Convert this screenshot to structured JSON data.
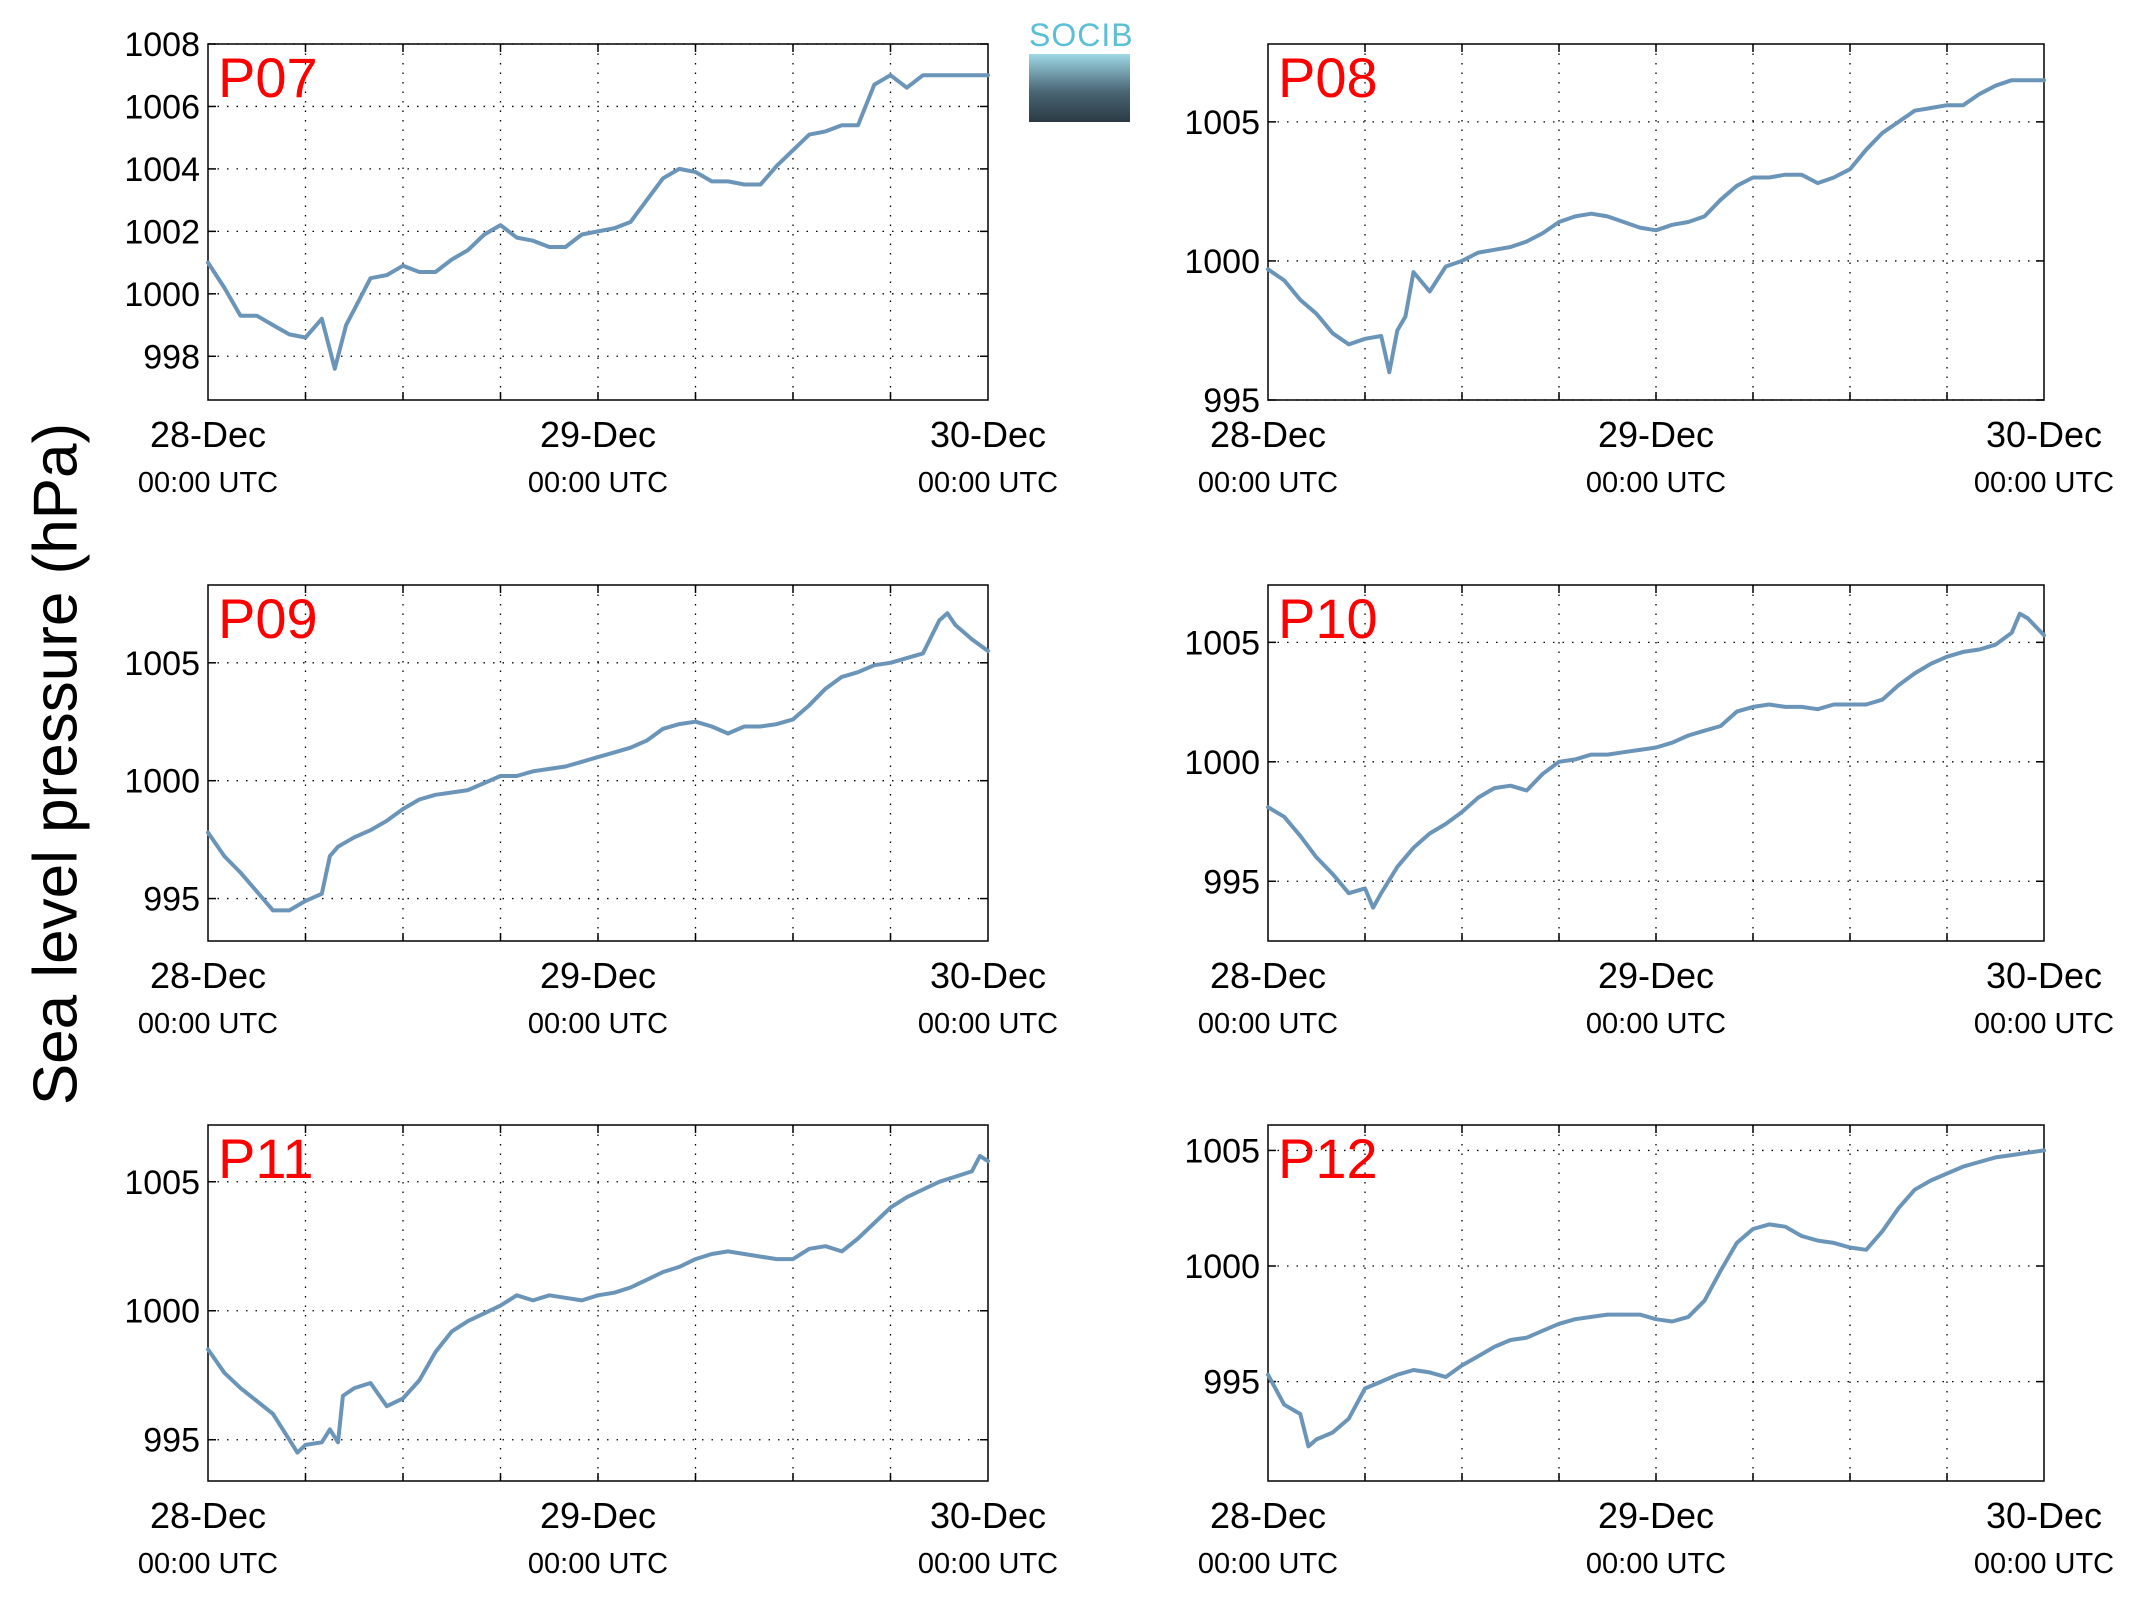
{
  "figure": {
    "ylabel": "Sea level pressure (hPa)",
    "logo_text": "SOCIB"
  },
  "colors": {
    "line": "#6b95b8",
    "panel_label": "#ff0000",
    "axis": "#000000"
  },
  "chart_data": [
    {
      "type": "line",
      "title": "P07",
      "x_tick_labels": [
        [
          "28-Dec",
          "00:00 UTC"
        ],
        [
          "29-Dec",
          "00:00 UTC"
        ],
        [
          "30-Dec",
          "00:00 UTC"
        ]
      ],
      "x_ticks_hours": [
        0,
        24,
        48
      ],
      "x_grid_hours": [
        6,
        12,
        18,
        24,
        30,
        36,
        42
      ],
      "xlim_hours": [
        0,
        48
      ],
      "ylim": [
        996.6,
        1008
      ],
      "yticks": [
        998,
        1000,
        1002,
        1004,
        1006,
        1008
      ],
      "grid": true,
      "series": [
        {
          "x_hours": [
            0,
            1,
            2,
            3,
            4,
            5,
            6,
            7,
            7.8,
            8.5,
            9,
            10,
            11,
            12,
            13,
            14,
            15,
            16,
            17,
            18,
            19,
            20,
            21,
            22,
            23,
            24,
            25,
            26,
            27,
            28,
            29,
            30,
            31,
            32,
            33,
            34,
            35,
            36,
            37,
            38,
            39,
            40,
            41,
            42,
            43,
            44,
            45,
            46,
            47,
            48
          ],
          "values": [
            1001.0,
            1000.2,
            999.3,
            999.3,
            999.0,
            998.7,
            998.6,
            999.2,
            997.6,
            999.0,
            999.5,
            1000.5,
            1000.6,
            1000.9,
            1000.7,
            1000.7,
            1001.1,
            1001.4,
            1001.9,
            1002.2,
            1001.8,
            1001.7,
            1001.5,
            1001.5,
            1001.9,
            1002.0,
            1002.1,
            1002.3,
            1003.0,
            1003.7,
            1004.0,
            1003.9,
            1003.6,
            1003.6,
            1003.5,
            1003.5,
            1004.1,
            1004.6,
            1005.1,
            1005.2,
            1005.4,
            1005.4,
            1006.7,
            1007.0,
            1006.6,
            1007.0,
            1007.0,
            1007.0,
            1007.0,
            1007.0
          ]
        }
      ]
    },
    {
      "type": "line",
      "title": "P08",
      "x_tick_labels": [
        [
          "28-Dec",
          "00:00 UTC"
        ],
        [
          "29-Dec",
          "00:00 UTC"
        ],
        [
          "30-Dec",
          "00:00 UTC"
        ]
      ],
      "x_ticks_hours": [
        0,
        24,
        48
      ],
      "x_grid_hours": [
        6,
        12,
        18,
        24,
        30,
        36,
        42
      ],
      "xlim_hours": [
        0,
        48
      ],
      "ylim": [
        995,
        1007.8
      ],
      "yticks": [
        995,
        1000,
        1005
      ],
      "grid": true,
      "series": [
        {
          "x_hours": [
            0,
            1,
            2,
            3,
            4,
            5,
            6,
            7,
            7.5,
            8,
            8.5,
            9,
            10,
            11,
            12,
            13,
            14,
            15,
            16,
            17,
            18,
            19,
            20,
            21,
            22,
            23,
            24,
            25,
            26,
            27,
            28,
            29,
            30,
            31,
            32,
            33,
            34,
            35,
            36,
            37,
            38,
            39,
            40,
            41,
            42,
            43,
            44,
            45,
            46,
            47,
            48
          ],
          "values": [
            999.7,
            999.3,
            998.6,
            998.1,
            997.4,
            997.0,
            997.2,
            997.3,
            996.0,
            997.5,
            998.0,
            999.6,
            998.9,
            999.8,
            1000.0,
            1000.3,
            1000.4,
            1000.5,
            1000.7,
            1001.0,
            1001.4,
            1001.6,
            1001.7,
            1001.6,
            1001.4,
            1001.2,
            1001.1,
            1001.3,
            1001.4,
            1001.6,
            1002.2,
            1002.7,
            1003.0,
            1003.0,
            1003.1,
            1003.1,
            1002.8,
            1003.0,
            1003.3,
            1004.0,
            1004.6,
            1005.0,
            1005.4,
            1005.5,
            1005.6,
            1005.6,
            1006.0,
            1006.3,
            1006.5,
            1006.5,
            1006.5
          ]
        }
      ]
    },
    {
      "type": "line",
      "title": "P09",
      "x_tick_labels": [
        [
          "28-Dec",
          "00:00 UTC"
        ],
        [
          "29-Dec",
          "00:00 UTC"
        ],
        [
          "30-Dec",
          "00:00 UTC"
        ]
      ],
      "x_ticks_hours": [
        0,
        24,
        48
      ],
      "x_grid_hours": [
        6,
        12,
        18,
        24,
        30,
        36,
        42
      ],
      "xlim_hours": [
        0,
        48
      ],
      "ylim": [
        993.2,
        1008.3
      ],
      "yticks": [
        995,
        1000,
        1005
      ],
      "grid": true,
      "series": [
        {
          "x_hours": [
            0,
            1,
            2,
            3,
            4,
            5,
            6,
            7,
            7.5,
            8,
            9,
            10,
            11,
            12,
            13,
            14,
            15,
            16,
            17,
            18,
            19,
            20,
            21,
            22,
            23,
            24,
            25,
            26,
            27,
            28,
            29,
            30,
            31,
            32,
            33,
            34,
            35,
            36,
            37,
            38,
            39,
            40,
            41,
            42,
            43,
            44,
            45,
            45.5,
            46,
            47,
            48
          ],
          "values": [
            997.8,
            996.8,
            996.1,
            995.3,
            994.5,
            994.5,
            994.9,
            995.2,
            996.8,
            997.2,
            997.6,
            997.9,
            998.3,
            998.8,
            999.2,
            999.4,
            999.5,
            999.6,
            999.9,
            1000.2,
            1000.2,
            1000.4,
            1000.5,
            1000.6,
            1000.8,
            1001.0,
            1001.2,
            1001.4,
            1001.7,
            1002.2,
            1002.4,
            1002.5,
            1002.3,
            1002.0,
            1002.3,
            1002.3,
            1002.4,
            1002.6,
            1003.2,
            1003.9,
            1004.4,
            1004.6,
            1004.9,
            1005.0,
            1005.2,
            1005.4,
            1006.8,
            1007.1,
            1006.6,
            1006.0,
            1005.5
          ]
        }
      ]
    },
    {
      "type": "line",
      "title": "P10",
      "x_tick_labels": [
        [
          "28-Dec",
          "00:00 UTC"
        ],
        [
          "29-Dec",
          "00:00 UTC"
        ],
        [
          "30-Dec",
          "00:00 UTC"
        ]
      ],
      "x_ticks_hours": [
        0,
        24,
        48
      ],
      "x_grid_hours": [
        6,
        12,
        18,
        24,
        30,
        36,
        42
      ],
      "xlim_hours": [
        0,
        48
      ],
      "ylim": [
        992.5,
        1007.4
      ],
      "yticks": [
        995,
        1000,
        1005
      ],
      "grid": true,
      "series": [
        {
          "x_hours": [
            0,
            1,
            2,
            3,
            4,
            5,
            6,
            6.5,
            7,
            8,
            9,
            10,
            11,
            12,
            13,
            14,
            15,
            16,
            17,
            18,
            19,
            20,
            21,
            22,
            23,
            24,
            25,
            26,
            27,
            28,
            29,
            30,
            31,
            32,
            33,
            34,
            35,
            36,
            37,
            38,
            39,
            40,
            41,
            42,
            43,
            44,
            45,
            46,
            46.5,
            47,
            48
          ],
          "values": [
            998.1,
            997.7,
            996.9,
            996.0,
            995.3,
            994.5,
            994.7,
            993.9,
            994.5,
            995.6,
            996.4,
            997.0,
            997.4,
            997.9,
            998.5,
            998.9,
            999.0,
            998.8,
            999.5,
            1000.0,
            1000.1,
            1000.3,
            1000.3,
            1000.4,
            1000.5,
            1000.6,
            1000.8,
            1001.1,
            1001.3,
            1001.5,
            1002.1,
            1002.3,
            1002.4,
            1002.3,
            1002.3,
            1002.2,
            1002.4,
            1002.4,
            1002.4,
            1002.6,
            1003.2,
            1003.7,
            1004.1,
            1004.4,
            1004.6,
            1004.7,
            1004.9,
            1005.4,
            1006.2,
            1006.0,
            1005.3
          ]
        }
      ]
    },
    {
      "type": "line",
      "title": "P11",
      "x_tick_labels": [
        [
          "28-Dec",
          "00:00 UTC"
        ],
        [
          "29-Dec",
          "00:00 UTC"
        ],
        [
          "30-Dec",
          "00:00 UTC"
        ]
      ],
      "x_ticks_hours": [
        0,
        24,
        48
      ],
      "x_grid_hours": [
        6,
        12,
        18,
        24,
        30,
        36,
        42
      ],
      "xlim_hours": [
        0,
        48
      ],
      "ylim": [
        993.4,
        1007.2
      ],
      "yticks": [
        995,
        1000,
        1005
      ],
      "grid": true,
      "series": [
        {
          "x_hours": [
            0,
            1,
            2,
            3,
            4,
            5,
            5.5,
            6,
            7,
            7.5,
            8,
            8.3,
            9,
            10,
            11,
            12,
            13,
            14,
            15,
            16,
            17,
            18,
            19,
            20,
            21,
            22,
            23,
            24,
            25,
            26,
            27,
            28,
            29,
            30,
            31,
            32,
            33,
            34,
            35,
            36,
            37,
            38,
            39,
            40,
            41,
            42,
            43,
            44,
            45,
            46,
            47,
            47.5,
            48
          ],
          "values": [
            998.5,
            997.6,
            997.0,
            996.5,
            996.0,
            995.0,
            994.5,
            994.8,
            994.9,
            995.4,
            994.9,
            996.7,
            997.0,
            997.2,
            996.3,
            996.6,
            997.3,
            998.4,
            999.2,
            999.6,
            999.9,
            1000.2,
            1000.6,
            1000.4,
            1000.6,
            1000.5,
            1000.4,
            1000.6,
            1000.7,
            1000.9,
            1001.2,
            1001.5,
            1001.7,
            1002.0,
            1002.2,
            1002.3,
            1002.2,
            1002.1,
            1002.0,
            1002.0,
            1002.4,
            1002.5,
            1002.3,
            1002.8,
            1003.4,
            1004.0,
            1004.4,
            1004.7,
            1005.0,
            1005.2,
            1005.4,
            1006.0,
            1005.8
          ]
        }
      ]
    },
    {
      "type": "line",
      "title": "P12",
      "x_tick_labels": [
        [
          "28-Dec",
          "00:00 UTC"
        ],
        [
          "29-Dec",
          "00:00 UTC"
        ],
        [
          "30-Dec",
          "00:00 UTC"
        ]
      ],
      "x_ticks_hours": [
        0,
        24,
        48
      ],
      "x_grid_hours": [
        6,
        12,
        18,
        24,
        30,
        36,
        42
      ],
      "xlim_hours": [
        0,
        48
      ],
      "ylim": [
        990.7,
        1006.1
      ],
      "yticks": [
        995,
        1000,
        1005
      ],
      "grid": true,
      "series": [
        {
          "x_hours": [
            0,
            1,
            2,
            2.5,
            3,
            4,
            5,
            6,
            7,
            8,
            9,
            10,
            11,
            12,
            13,
            14,
            15,
            16,
            17,
            18,
            19,
            20,
            21,
            22,
            23,
            24,
            25,
            26,
            27,
            28,
            29,
            30,
            31,
            32,
            33,
            34,
            35,
            36,
            37,
            38,
            39,
            40,
            41,
            42,
            43,
            44,
            45,
            46,
            47,
            48
          ],
          "values": [
            995.3,
            994.0,
            993.6,
            992.2,
            992.5,
            992.8,
            993.4,
            994.7,
            995.0,
            995.3,
            995.5,
            995.4,
            995.2,
            995.7,
            996.1,
            996.5,
            996.8,
            996.9,
            997.2,
            997.5,
            997.7,
            997.8,
            997.9,
            997.9,
            997.9,
            997.7,
            997.6,
            997.8,
            998.5,
            999.8,
            1001.0,
            1001.6,
            1001.8,
            1001.7,
            1001.3,
            1001.1,
            1001.0,
            1000.8,
            1000.7,
            1001.5,
            1002.5,
            1003.3,
            1003.7,
            1004.0,
            1004.3,
            1004.5,
            1004.7,
            1004.8,
            1004.9,
            1005.0
          ]
        }
      ]
    }
  ]
}
